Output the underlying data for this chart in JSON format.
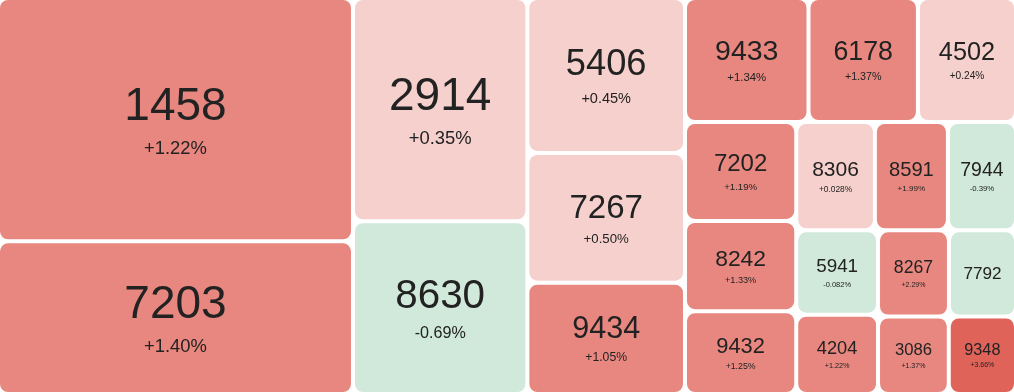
{
  "chart_data": {
    "type": "other",
    "categories": [
      "1458",
      "7203",
      "2914",
      "8630",
      "5406",
      "7267",
      "9434",
      "9433",
      "6178",
      "4502",
      "7202",
      "8242",
      "9432",
      "8306",
      "8591",
      "7944",
      "5941",
      "4204",
      "8267",
      "7792",
      "3086",
      "9348"
    ],
    "values": [
      1.22,
      1.4,
      0.35,
      -0.69,
      0.45,
      0.5,
      1.05,
      1.34,
      1.37,
      0.24,
      1.19,
      1.33,
      1.25,
      0.028,
      1.99,
      -0.39,
      -0.082,
      1.22,
      2.29,
      null,
      1.37,
      3.66
    ],
    "value_labels": [
      "+1.22%",
      "+1.40%",
      "+0.35%",
      "-0.69%",
      "+0.45%",
      "+0.50%",
      "+1.05%",
      "+1.34%",
      "+1.37%",
      "+0.24%",
      "+1.19%",
      "+1.33%",
      "+1.25%",
      "+0.028%",
      "+1.99%",
      "-0.39%",
      "-0.082%",
      "+1.22%",
      "+2.29%",
      null,
      "+1.37%",
      "+3.66%"
    ]
  }
}
